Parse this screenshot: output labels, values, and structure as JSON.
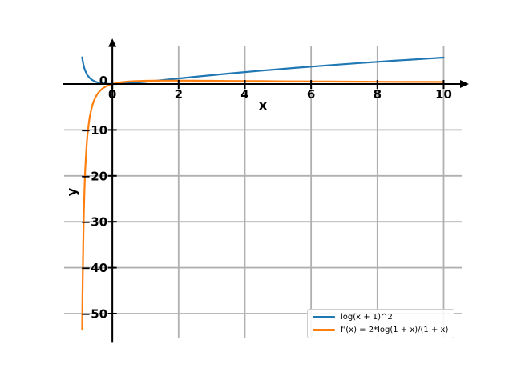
{
  "figure": {
    "background": "#ffffff"
  },
  "chart_data": {
    "type": "line",
    "title": "",
    "xlabel": "x",
    "ylabel": "y",
    "xlim": [
      -1.455,
      10.545
    ],
    "ylim": [
      -55.3,
      8.26
    ],
    "grid": true,
    "grid_color": "#b0b0b0",
    "axis_color": "#000000",
    "xticks": [
      {
        "v": 0,
        "label": "0"
      },
      {
        "v": 2,
        "label": "2"
      },
      {
        "v": 4,
        "label": "4"
      },
      {
        "v": 6,
        "label": "6"
      },
      {
        "v": 8,
        "label": "8"
      },
      {
        "v": 10,
        "label": "10"
      }
    ],
    "yticks": [
      {
        "v": 0,
        "label": "0"
      },
      {
        "v": -10,
        "label": "−10"
      },
      {
        "v": -20,
        "label": "−20"
      },
      {
        "v": -30,
        "label": "−30"
      },
      {
        "v": -40,
        "label": "−40"
      },
      {
        "v": -50,
        "label": "−50"
      }
    ],
    "legend": {
      "position": "lower right",
      "items": [
        "log(x + 1)^2",
        "f'(x) = 2*log(1 + x)/(1 + x)"
      ]
    },
    "series": [
      {
        "name": "log(x + 1)^2",
        "color": "#1f77b4",
        "x": [
          -0.91,
          -0.905,
          -0.9,
          -0.89,
          -0.88,
          -0.87,
          -0.86,
          -0.85,
          -0.84,
          -0.83,
          -0.82,
          -0.8,
          -0.78,
          -0.76,
          -0.75,
          -0.72,
          -0.7,
          -0.68,
          -0.65,
          -0.6,
          -0.55,
          -0.5,
          -0.45,
          -0.4,
          -0.35,
          -0.3,
          -0.25,
          -0.2,
          -0.15,
          -0.1,
          -0.05,
          0,
          0.1,
          0.2,
          0.25,
          0.35,
          0.5,
          0.65,
          0.75,
          0.85,
          1,
          1.25,
          1.5,
          1.75,
          2,
          2.5,
          3,
          3.5,
          4,
          4.5,
          5,
          5.5,
          6,
          6.5,
          7,
          7.5,
          8,
          8.5,
          9,
          9.5,
          10
        ],
        "y": [
          5.798,
          5.541,
          5.302,
          4.872,
          4.496,
          4.162,
          3.866,
          3.599,
          3.358,
          3.14,
          2.941,
          2.59,
          2.293,
          2.037,
          1.922,
          1.62,
          1.45,
          1.298,
          1.102,
          0.84,
          0.638,
          0.48,
          0.357,
          0.261,
          0.186,
          0.127,
          0.083,
          0.05,
          0.026,
          0.011,
          0.003,
          0,
          0.009,
          0.033,
          0.05,
          0.09,
          0.164,
          0.251,
          0.313,
          0.379,
          0.48,
          0.658,
          0.84,
          1.023,
          1.207,
          1.57,
          1.922,
          2.262,
          2.59,
          2.906,
          3.211,
          3.504,
          3.787,
          4.06,
          4.324,
          4.58,
          4.828,
          5.068,
          5.302,
          5.529,
          5.75
        ]
      },
      {
        "name": "f'(x) = 2*log(1 + x)/(1 + x)",
        "color": "#ff7f0e",
        "x": [
          -0.91,
          -0.905,
          -0.9,
          -0.89,
          -0.88,
          -0.87,
          -0.86,
          -0.85,
          -0.84,
          -0.83,
          -0.82,
          -0.8,
          -0.78,
          -0.76,
          -0.75,
          -0.72,
          -0.7,
          -0.68,
          -0.65,
          -0.6,
          -0.55,
          -0.5,
          -0.45,
          -0.4,
          -0.35,
          -0.3,
          -0.25,
          -0.2,
          -0.15,
          -0.1,
          -0.05,
          0,
          0.1,
          0.2,
          0.25,
          0.35,
          0.5,
          0.65,
          0.75,
          0.85,
          1,
          1.25,
          1.5,
          1.75,
          2,
          2.5,
          3,
          3.5,
          4,
          4.5,
          5,
          5.5,
          6,
          6.5,
          7,
          7.5,
          8,
          8.5,
          9,
          9.5,
          10
        ],
        "y": [
          -53.51,
          -49.56,
          -46.05,
          -40.13,
          -35.34,
          -31.39,
          -28.09,
          -25.29,
          -22.91,
          -20.85,
          -19.05,
          -16.09,
          -13.76,
          -11.89,
          -11.09,
          -9.09,
          -8.03,
          -7.12,
          -6.0,
          -4.58,
          -3.55,
          -2.77,
          -2.17,
          -1.7,
          -1.33,
          -1.02,
          -0.77,
          -0.56,
          -0.38,
          -0.23,
          -0.11,
          0,
          0.17,
          0.3,
          0.36,
          0.44,
          0.54,
          0.61,
          0.64,
          0.67,
          0.69,
          0.72,
          0.73,
          0.74,
          0.73,
          0.72,
          0.69,
          0.67,
          0.64,
          0.62,
          0.6,
          0.58,
          0.56,
          0.54,
          0.52,
          0.5,
          0.49,
          0.47,
          0.46,
          0.45,
          0.44
        ]
      }
    ]
  }
}
